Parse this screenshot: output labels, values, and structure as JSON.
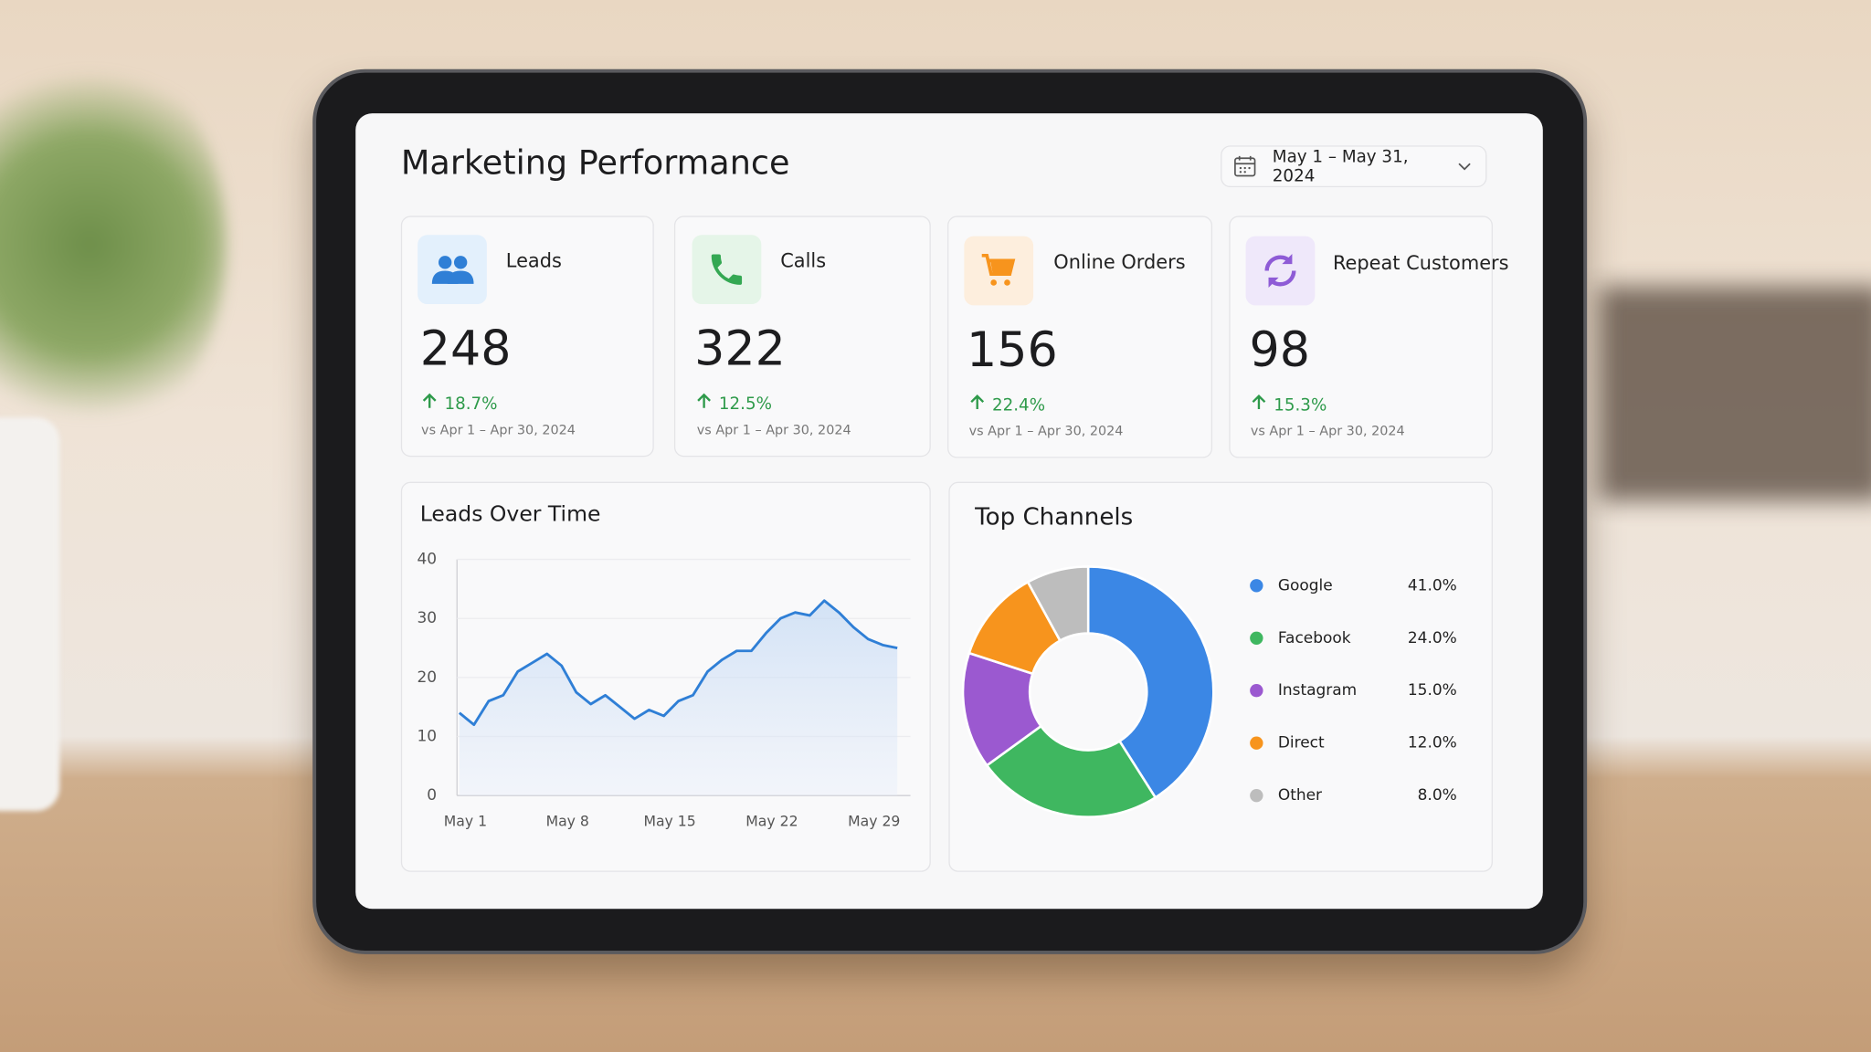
{
  "header": {
    "title": "Marketing Performance",
    "date_range": "May 1 – May 31, 2024"
  },
  "kpis": [
    {
      "label": "Leads",
      "value": 248,
      "change": "18.7%",
      "comparison": "vs Apr 1 – Apr 30, 2024"
    },
    {
      "label": "Calls",
      "value": 322,
      "change": "12.5%",
      "comparison": "vs Apr 1 – Apr 30, 2024"
    },
    {
      "label": "Online Orders",
      "value": 156,
      "change": "22.4%",
      "comparison": "vs Apr 1 – Apr 30, 2024"
    },
    {
      "label": "Repeat Customers",
      "value": 98,
      "change": "15.3%",
      "comparison": "vs Apr 1 – Apr 30, 2024"
    }
  ],
  "chart_data": [
    {
      "type": "line",
      "title": "Leads Over Time",
      "categories": [
        "May 1",
        null,
        null,
        null,
        null,
        null,
        null,
        "May 8",
        null,
        null,
        null,
        null,
        null,
        null,
        "May 15",
        null,
        null,
        null,
        null,
        null,
        null,
        "May 22",
        null,
        null,
        null,
        null,
        null,
        null,
        "May 29",
        null,
        null
      ],
      "values": [
        14,
        12,
        16,
        17,
        21,
        22.5,
        24,
        22,
        17.5,
        15.5,
        17,
        15,
        13,
        14.5,
        13.5,
        16,
        17,
        21,
        23,
        24.5,
        24.5,
        27.5,
        30,
        31,
        30.5,
        33,
        31,
        28.5,
        26.5,
        25.5,
        25
      ],
      "color": "#2f7fd6",
      "ylim": [
        0,
        40
      ],
      "yticks": [
        0,
        10,
        20,
        30,
        40
      ],
      "grid": true
    },
    {
      "type": "pie",
      "title": "Top Channels",
      "categories": [
        "Google",
        "Facebook",
        "Instagram",
        "Direct",
        "Other"
      ],
      "values": [
        41,
        24,
        15,
        12,
        8
      ],
      "value_labels": [
        "41.0%",
        "24.0%",
        "15.0%",
        "12.0%",
        "8.0%"
      ],
      "colors": [
        "#3b87e5",
        "#3fb760",
        "#9b59d0",
        "#f7941d",
        "#bdbdbd"
      ]
    }
  ]
}
